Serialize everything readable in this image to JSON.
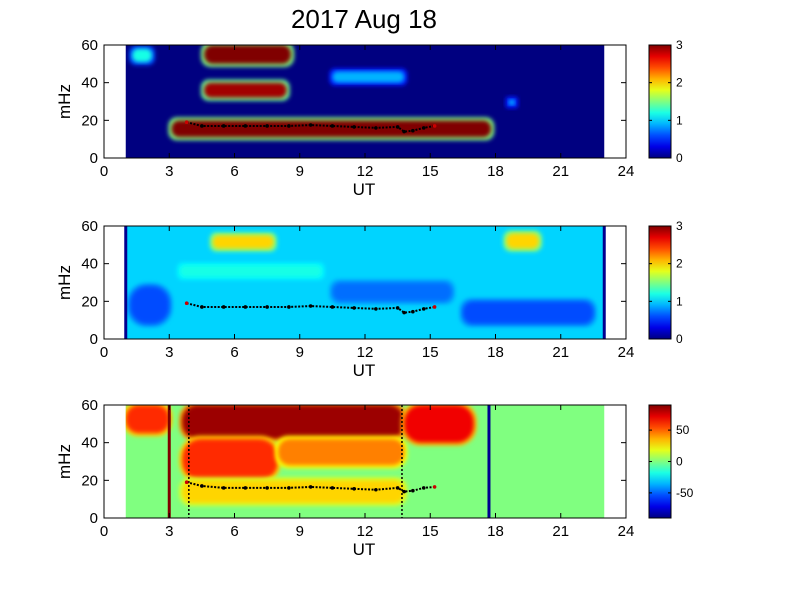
{
  "figure": {
    "title": "2017 Aug 18"
  },
  "chart_data": [
    {
      "type": "heatmap",
      "xlabel": "UT",
      "ylabel": "mHz",
      "xlim": [
        0,
        24
      ],
      "ylim": [
        0,
        60
      ],
      "xticks": [
        "0",
        "3",
        "6",
        "9",
        "12",
        "15",
        "18",
        "21",
        "24"
      ],
      "yticks": [
        "0",
        "20",
        "40",
        "60"
      ],
      "colorbar": {
        "range": [
          0,
          3
        ],
        "ticks": [
          "0",
          "1",
          "2",
          "3"
        ],
        "colormap": "jet"
      },
      "data_extent_ut": [
        1,
        23
      ],
      "blobs": [
        {
          "ut": [
            4.6,
            8.6
          ],
          "mhz": [
            50,
            60
          ],
          "level": 3.0
        },
        {
          "ut": [
            4.6,
            8.4
          ],
          "mhz": [
            32,
            40
          ],
          "level": 2.9
        },
        {
          "ut": [
            3.1,
            17.8
          ],
          "mhz": [
            11,
            20
          ],
          "level": 3.0
        },
        {
          "ut": [
            1.3,
            2.2
          ],
          "mhz": [
            51,
            58
          ],
          "level": 1.2
        },
        {
          "ut": [
            10.5,
            13.8
          ],
          "mhz": [
            40,
            46
          ],
          "level": 0.9
        },
        {
          "ut": [
            18.6,
            18.9
          ],
          "mhz": [
            28,
            31
          ],
          "level": 0.9
        }
      ],
      "ridge": {
        "ut": [
          3.8,
          4.5,
          5.5,
          6.5,
          7.5,
          8.5,
          9.5,
          10.5,
          11.5,
          12.5,
          13.5,
          13.8,
          14.2,
          14.7,
          15.2
        ],
        "mhz": [
          19,
          17,
          17,
          17,
          17,
          17,
          17.5,
          17,
          16.5,
          16,
          16.5,
          14,
          14.5,
          16,
          17
        ]
      }
    },
    {
      "type": "heatmap",
      "xlabel": "UT",
      "ylabel": "mHz",
      "xlim": [
        0,
        24
      ],
      "ylim": [
        0,
        60
      ],
      "xticks": [
        "0",
        "3",
        "6",
        "9",
        "12",
        "15",
        "18",
        "21",
        "24"
      ],
      "yticks": [
        "0",
        "20",
        "40",
        "60"
      ],
      "colorbar": {
        "range": [
          0,
          3
        ],
        "ticks": [
          "0",
          "1",
          "2",
          "3"
        ],
        "colormap": "jet"
      },
      "data_extent_ut": [
        1,
        23
      ],
      "background_level": 1.0,
      "blobs": [
        {
          "ut": [
            5.0,
            7.8
          ],
          "mhz": [
            48,
            55
          ],
          "level": 2.0
        },
        {
          "ut": [
            18.5,
            20.0
          ],
          "mhz": [
            48,
            56
          ],
          "level": 2.0
        },
        {
          "ut": [
            3.5,
            10.0
          ],
          "mhz": [
            33,
            39
          ],
          "level": 1.2
        },
        {
          "ut": [
            1.2,
            3.0
          ],
          "mhz": [
            8,
            28
          ],
          "level": 0.6
        },
        {
          "ut": [
            10.5,
            16.0
          ],
          "mhz": [
            20,
            30
          ],
          "level": 0.7
        },
        {
          "ut": [
            16.5,
            22.5
          ],
          "mhz": [
            8,
            20
          ],
          "level": 0.6
        }
      ],
      "ridge": {
        "ut": [
          3.8,
          4.5,
          5.5,
          6.5,
          7.5,
          8.5,
          9.5,
          10.5,
          11.5,
          12.5,
          13.5,
          13.8,
          14.2,
          14.7,
          15.2
        ],
        "mhz": [
          19,
          17,
          17,
          17,
          17,
          17,
          17.5,
          17,
          16.5,
          16,
          16.5,
          14,
          14.5,
          16,
          17
        ]
      }
    },
    {
      "type": "heatmap",
      "xlabel": "UT",
      "ylabel": "mHz",
      "xlim": [
        0,
        24
      ],
      "ylim": [
        0,
        60
      ],
      "xticks": [
        "0",
        "3",
        "6",
        "9",
        "12",
        "15",
        "18",
        "21",
        "24"
      ],
      "yticks": [
        "0",
        "20",
        "40",
        "60"
      ],
      "colorbar": {
        "range": [
          -90,
          90
        ],
        "ticks": [
          "50",
          "0",
          "-50"
        ],
        "tick_values": [
          50,
          0,
          -50
        ],
        "colormap": "jet"
      },
      "data_extent_ut": [
        1,
        23
      ],
      "background_level": 0,
      "blobs": [
        {
          "ut": [
            3.6,
            13.8
          ],
          "mhz": [
            42,
            60
          ],
          "level": 85
        },
        {
          "ut": [
            3.6,
            8.0
          ],
          "mhz": [
            20,
            42
          ],
          "level": 60
        },
        {
          "ut": [
            8.0,
            13.8
          ],
          "mhz": [
            28,
            42
          ],
          "level": 45
        },
        {
          "ut": [
            1.0,
            3.0
          ],
          "mhz": [
            45,
            60
          ],
          "level": 60
        },
        {
          "ut": [
            13.8,
            17.0
          ],
          "mhz": [
            40,
            60
          ],
          "level": 70
        },
        {
          "ut": [
            3.6,
            13.8
          ],
          "mhz": [
            8,
            20
          ],
          "level": 30
        }
      ],
      "vertical_lines": [
        {
          "ut": 3.0,
          "style": "solid",
          "color": "#800000"
        },
        {
          "ut": 3.9,
          "style": "dotted",
          "color": "#000000"
        },
        {
          "ut": 13.7,
          "style": "dotted",
          "color": "#000000"
        },
        {
          "ut": 17.7,
          "style": "solid",
          "color": "#00008f"
        }
      ],
      "ridge": {
        "ut": [
          3.8,
          4.5,
          5.5,
          6.5,
          7.5,
          8.5,
          9.5,
          10.5,
          11.5,
          12.5,
          13.5,
          13.8,
          14.2,
          14.7,
          15.2
        ],
        "mhz": [
          19,
          17,
          16,
          16,
          16,
          16,
          16.5,
          16,
          15.5,
          15,
          16,
          14,
          14.5,
          16,
          16.5
        ]
      }
    }
  ]
}
